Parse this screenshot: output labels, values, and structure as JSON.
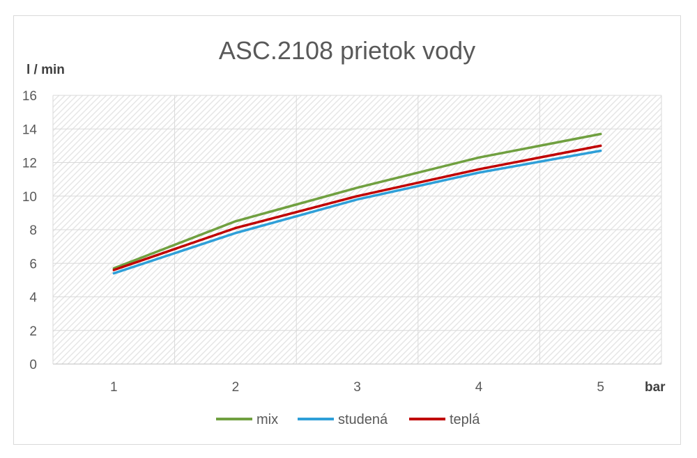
{
  "chart_data": {
    "type": "line",
    "title": "ASC.2108 prietok vody",
    "xlabel": "bar",
    "ylabel": "l / min",
    "x": [
      1,
      2,
      3,
      4,
      5
    ],
    "ylim": [
      0,
      16
    ],
    "yticks": [
      0,
      2,
      4,
      6,
      8,
      10,
      12,
      14,
      16
    ],
    "grid": true,
    "legend": "bottom",
    "series": [
      {
        "name": "mix",
        "color": "#70a040",
        "values": [
          5.7,
          8.5,
          10.5,
          12.3,
          13.7
        ]
      },
      {
        "name": "studená",
        "color": "#2e9fd8",
        "values": [
          5.4,
          7.8,
          9.8,
          11.4,
          12.7
        ]
      },
      {
        "name": "teplá",
        "color": "#c00000",
        "values": [
          5.6,
          8.1,
          10.0,
          11.6,
          13.0
        ]
      }
    ]
  }
}
